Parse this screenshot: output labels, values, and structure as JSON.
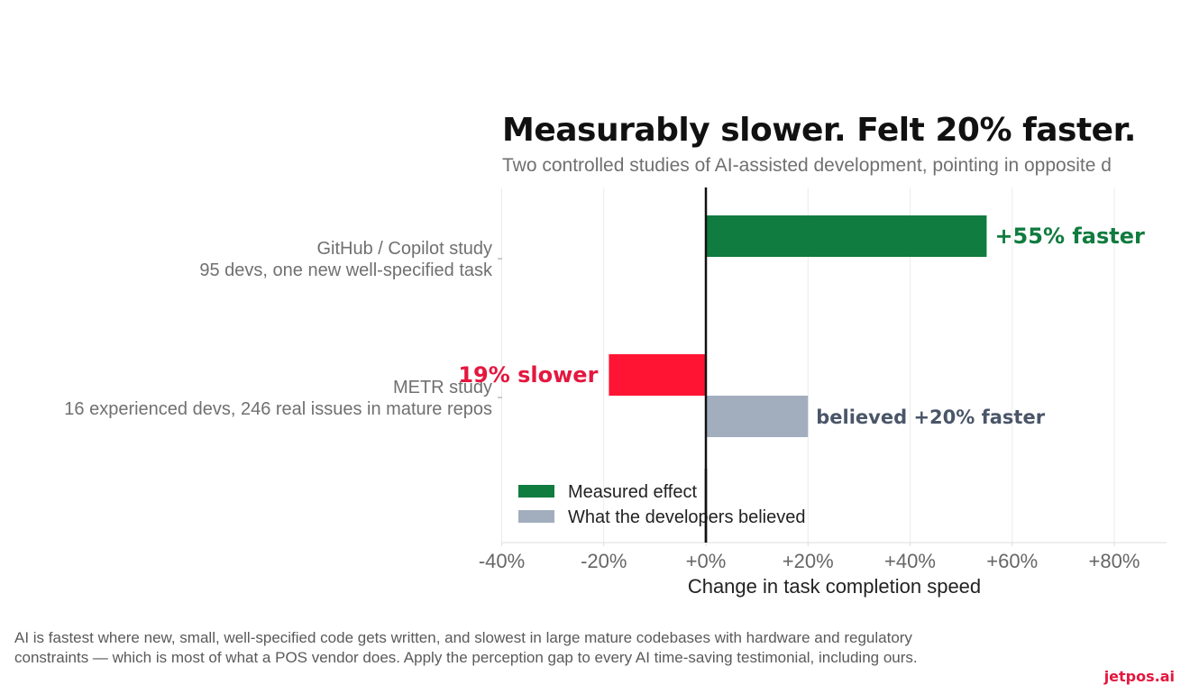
{
  "header": {
    "title": "Measurably slower. Felt 20% faster.",
    "subtitle": "Two controlled studies of AI-assisted development, pointing in opposite d"
  },
  "chart_data": {
    "type": "bar",
    "orientation": "horizontal",
    "title": "Measurably slower. Felt 20% faster.",
    "xlabel": "Change in task completion speed",
    "xlim": [
      -40,
      90
    ],
    "xticks": [
      "-40%",
      "-20%",
      "+0%",
      "+20%",
      "+40%",
      "+60%",
      "+80%"
    ],
    "xtick_values": [
      -40,
      -20,
      0,
      20,
      40,
      60,
      80
    ],
    "grid": true,
    "legend_position": "bottom-left",
    "categories": [
      {
        "line1": "GitHub / Copilot study",
        "line2": "95 devs, one new well-specified task"
      },
      {
        "line1": "METR study",
        "line2": "16 experienced devs, 246 real issues in mature repos"
      }
    ],
    "series": [
      {
        "name": "Measured effect",
        "color": "#107c3f",
        "values": [
          55,
          -19
        ],
        "labels": [
          "+55% faster",
          "19% slower"
        ],
        "label_colors": [
          "#107c3f",
          "#e5173f"
        ],
        "bar_colors": [
          "#107c3f",
          "#ff1433"
        ]
      },
      {
        "name": "What the developers believed",
        "color": "#a2aebe",
        "values": [
          null,
          20
        ],
        "labels": [
          null,
          "believed +20% faster"
        ],
        "label_colors": [
          null,
          "#4a5568"
        ],
        "bar_colors": [
          null,
          "#a2aebe"
        ]
      }
    ]
  },
  "footer": {
    "caption": "AI is fastest where new, small, well-specified code gets written, and slowest in large mature codebases with hardware and regulatory constraints — which is most of what a POS vendor does. Apply the perception gap to every AI time-saving testimonial, including ours.",
    "brand": "jetpos.ai"
  }
}
